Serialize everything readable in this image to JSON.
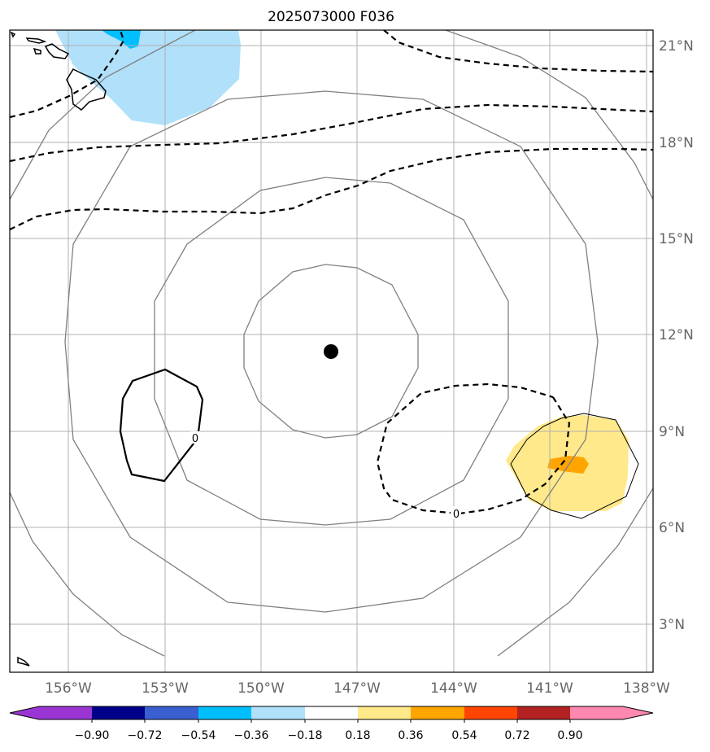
{
  "title": "2025073000 F036",
  "map": {
    "lon_labels": [
      "156°W",
      "153°W",
      "150°W",
      "147°W",
      "144°W",
      "141°W",
      "138°W"
    ],
    "lat_labels": [
      "21°N",
      "18°N",
      "15°N",
      "12°N",
      "9°N",
      "6°N",
      "3°N"
    ],
    "center_marker": "storm-center"
  },
  "contour_labels": {
    "west": "0",
    "east": "0"
  },
  "colorbar": {
    "ticks": [
      "−0.90",
      "−0.72",
      "−0.54",
      "−0.36",
      "−0.18",
      "0.18",
      "0.36",
      "0.54",
      "0.72",
      "0.90"
    ],
    "colors": [
      "#9a35d4",
      "#00008b",
      "#3a5fd0",
      "#00bfff",
      "#b0e0fa",
      "#ffffff",
      "#ffe98a",
      "#ffa500",
      "#ff4500",
      "#b22222",
      "#ff88b0"
    ]
  },
  "colors": {
    "shade_light_blue": "#b0e0fa",
    "shade_blue": "#00bfff",
    "shade_light_yellow": "#ffe98a",
    "shade_orange": "#ffa500",
    "ring": "#808080",
    "grid": "#b0b0b0"
  }
}
